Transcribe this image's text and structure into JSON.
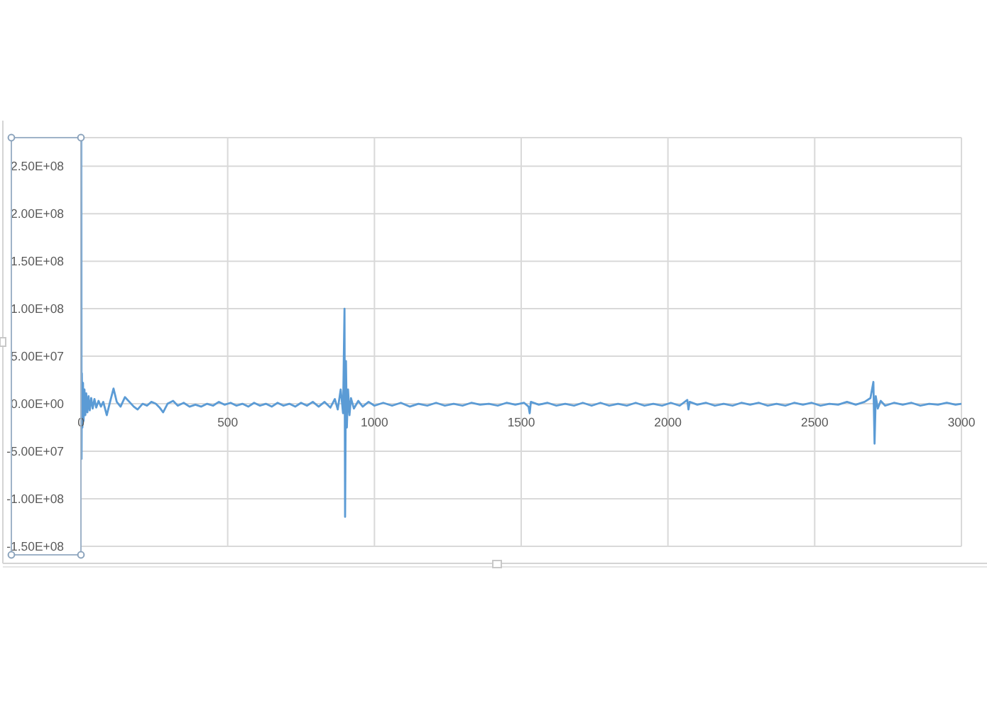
{
  "chart_data": {
    "type": "line",
    "x": [
      0,
      1,
      2,
      3,
      5,
      7,
      9,
      12,
      15,
      18,
      22,
      26,
      30,
      35,
      40,
      46,
      52,
      60,
      68,
      76,
      88,
      100,
      111,
      122,
      135,
      150,
      165,
      180,
      193,
      210,
      225,
      240,
      255,
      268,
      280,
      295,
      314,
      330,
      350,
      370,
      390,
      410,
      430,
      450,
      470,
      490,
      510,
      530,
      550,
      570,
      590,
      610,
      630,
      650,
      670,
      690,
      710,
      730,
      750,
      770,
      790,
      810,
      830,
      850,
      865,
      875,
      885,
      893,
      898,
      900,
      903,
      906,
      910,
      915,
      920,
      930,
      945,
      960,
      980,
      1000,
      1030,
      1060,
      1090,
      1120,
      1150,
      1180,
      1210,
      1240,
      1270,
      1300,
      1330,
      1360,
      1390,
      1420,
      1450,
      1480,
      1510,
      1525,
      1529,
      1533,
      1560,
      1590,
      1620,
      1650,
      1680,
      1710,
      1740,
      1770,
      1800,
      1830,
      1860,
      1890,
      1920,
      1950,
      1980,
      2010,
      2040,
      2066,
      2070,
      2074,
      2100,
      2130,
      2160,
      2190,
      2220,
      2250,
      2280,
      2310,
      2340,
      2370,
      2400,
      2430,
      2460,
      2490,
      2520,
      2550,
      2580,
      2610,
      2640,
      2670,
      2690,
      2700,
      2704,
      2708,
      2715,
      2725,
      2740,
      2770,
      2800,
      2830,
      2860,
      2890,
      2920,
      2950,
      2980,
      3000
    ],
    "series": [
      {
        "color": "#5b9bd5",
        "values": [
          0,
          278000000.0,
          -58000000.0,
          32000000.0,
          -25000000.0,
          22000000.0,
          -18000000.0,
          15000000.0,
          -12000000.0,
          11000000.0,
          -9000000.0,
          8000000.0,
          -7000000.0,
          6000000.0,
          -5000000.0,
          5000000.0,
          -4000000.0,
          3000000.0,
          -3000000.0,
          2000000.0,
          -12000000.0,
          3000000.0,
          16000000.0,
          2000000.0,
          -3000000.0,
          7000000.0,
          2000000.0,
          -3000000.0,
          -6000000.0,
          0,
          -2000000.0,
          2000000.0,
          0,
          -4000000.0,
          -9000000.0,
          0,
          3000000.0,
          -2000000.0,
          1000000.0,
          -3000000.0,
          -1000000.0,
          -3000000.0,
          0,
          -2000000.0,
          2000000.0,
          -1000000.0,
          1000000.0,
          -2000000.0,
          0,
          -3000000.0,
          1000000.0,
          -2000000.0,
          0,
          -3000000.0,
          1000000.0,
          -2000000.0,
          0,
          -3000000.0,
          1000000.0,
          -2000000.0,
          2000000.0,
          -3000000.0,
          2000000.0,
          -4000000.0,
          5000000.0,
          -6000000.0,
          15000000.0,
          -10000000.0,
          100000000.0,
          -119000000.0,
          45000000.0,
          -25000000.0,
          15000000.0,
          -12000000.0,
          6000000.0,
          -5000000.0,
          3000000.0,
          -3000000.0,
          2000000.0,
          -2000000.0,
          1000000.0,
          -2000000.0,
          1000000.0,
          -3000000.0,
          0,
          -2000000.0,
          1000000.0,
          -2000000.0,
          0,
          -2000000.0,
          1000000.0,
          -1000000.0,
          0,
          -2000000.0,
          1000000.0,
          -1000000.0,
          1000000.0,
          -3000000.0,
          -10000000.0,
          2000000.0,
          -1000000.0,
          1000000.0,
          -2000000.0,
          0,
          -2000000.0,
          1000000.0,
          -2000000.0,
          1000000.0,
          -2000000.0,
          0,
          -2000000.0,
          1000000.0,
          -2000000.0,
          0,
          -2000000.0,
          1000000.0,
          -2000000.0,
          4000000.0,
          -6000000.0,
          2000000.0,
          -1000000.0,
          1000000.0,
          -2000000.0,
          0,
          -2000000.0,
          1000000.0,
          -1000000.0,
          1000000.0,
          -2000000.0,
          0,
          -2000000.0,
          1000000.0,
          -1000000.0,
          1000000.0,
          -2000000.0,
          0,
          -1000000.0,
          2000000.0,
          -1000000.0,
          2000000.0,
          6000000.0,
          23000000.0,
          -42000000.0,
          8000000.0,
          -5000000.0,
          3000000.0,
          -2000000.0,
          1000000.0,
          -1000000.0,
          1000000.0,
          -2000000.0,
          0,
          -1000000.0,
          1000000.0,
          -1000000.0,
          0
        ]
      }
    ],
    "xlim": [
      0,
      3000
    ],
    "xticks": [
      0,
      500,
      1000,
      1500,
      2000,
      2500,
      3000
    ],
    "ylim": [
      -150000000.0,
      280000000.0
    ],
    "yticks": [
      {
        "value": -150000000.0,
        "label": "-1.50E+08"
      },
      {
        "value": -100000000.0,
        "label": "-1.00E+08"
      },
      {
        "value": -50000000.0,
        "label": "-5.00E+07"
      },
      {
        "value": 0,
        "label": "0.00E+00"
      },
      {
        "value": 50000000.0,
        "label": "5.00E+07"
      },
      {
        "value": 100000000.0,
        "label": "1.00E+08"
      },
      {
        "value": 150000000.0,
        "label": "1.50E+08"
      },
      {
        "value": 200000000.0,
        "label": "2.00E+08"
      },
      {
        "value": 250000000.0,
        "label": "2.50E+08"
      }
    ],
    "grid": true
  }
}
